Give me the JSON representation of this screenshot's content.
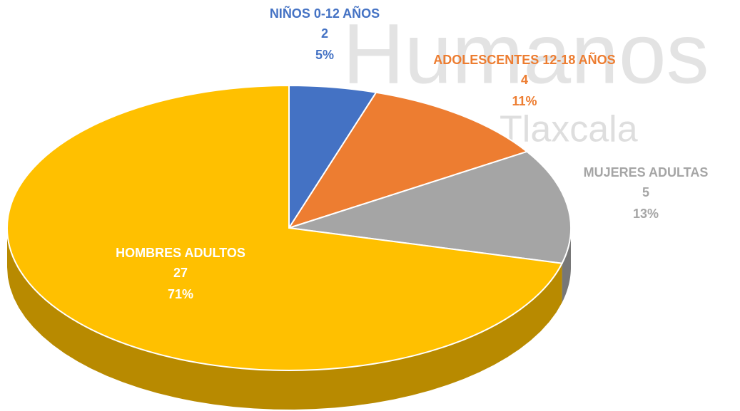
{
  "chart_data": {
    "type": "pie",
    "watermark": [
      "Humanos",
      "Tlaxcala"
    ],
    "categories": [
      "NIÑOS 0-12 AÑOS",
      "ADOLESCENTES 12-18 AÑOS",
      "MUJERES ADULTAS",
      "HOMBRES ADULTOS"
    ],
    "counts": [
      2,
      4,
      5,
      27
    ],
    "values": [
      5,
      11,
      13,
      71
    ],
    "value_labels": [
      "5%",
      "11%",
      "13%",
      "71%"
    ],
    "colors": [
      "#4472c4",
      "#ed7d31",
      "#a5a5a5",
      "#ffc000"
    ],
    "label_colors": [
      "#4472c4",
      "#ed7d31",
      "#a5a5a5",
      "#ffffff"
    ]
  }
}
